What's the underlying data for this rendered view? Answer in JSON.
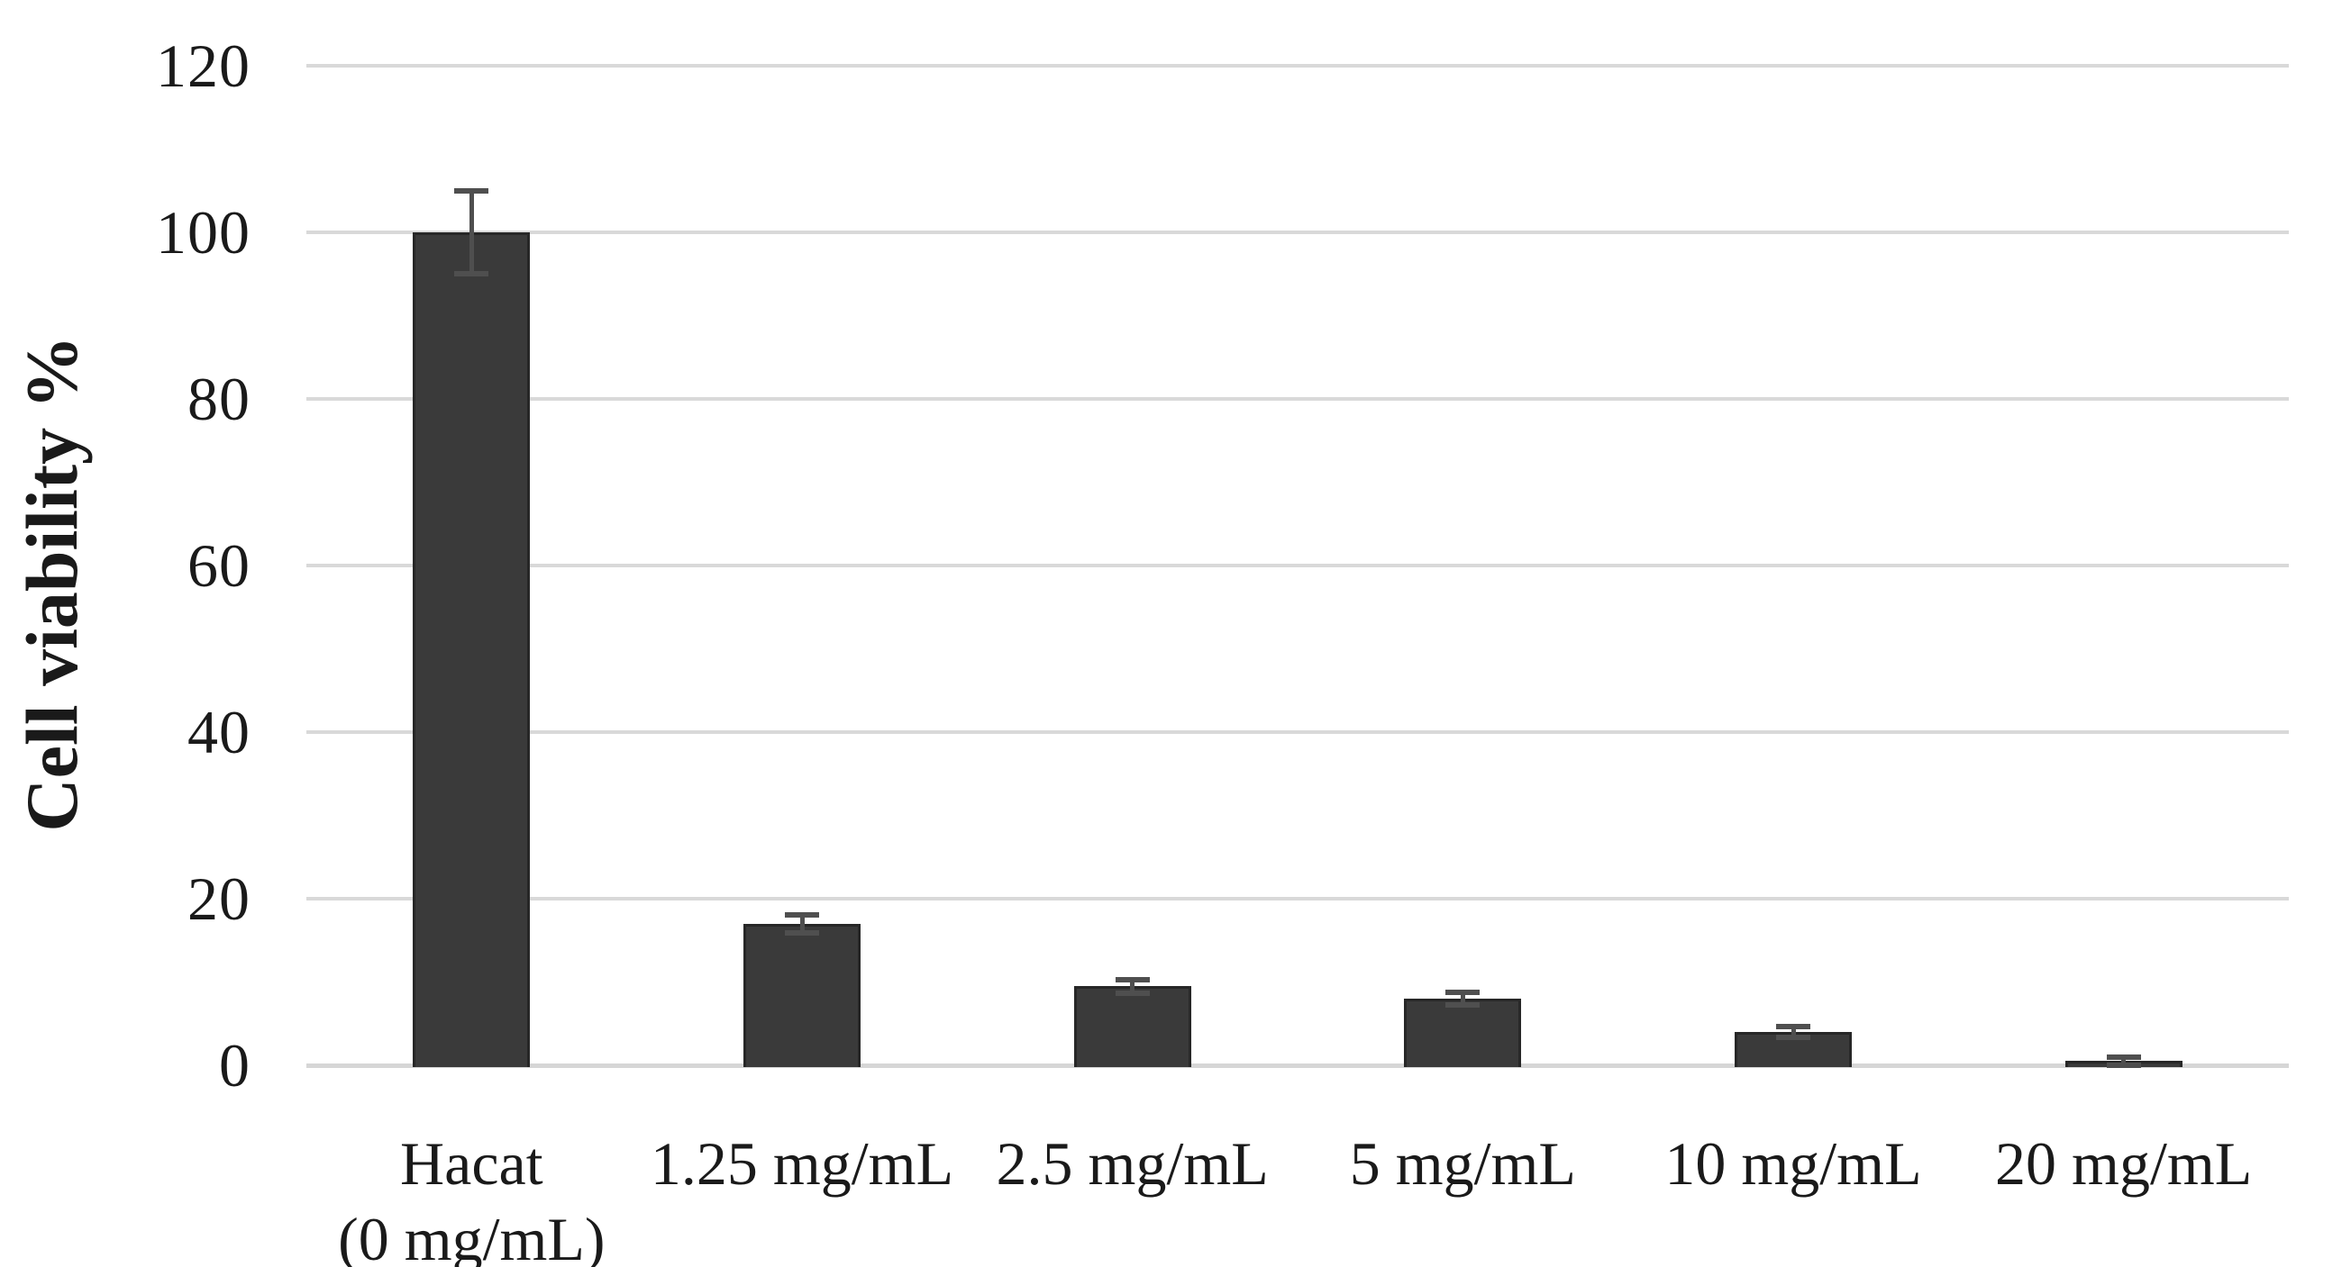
{
  "chart_data": {
    "type": "bar",
    "title": "",
    "xlabel": "",
    "ylabel": "Cell viability %",
    "categories": [
      "Hacat\n(0 mg/mL)",
      "1.25 mg/mL",
      "2.5 mg/mL",
      "5 mg/mL",
      "10 mg/mL",
      "20 mg/mL"
    ],
    "values": [
      100,
      17,
      9.5,
      8,
      4,
      0.5
    ],
    "errors": [
      5,
      1.1,
      0.8,
      0.8,
      0.7,
      0.5
    ],
    "yticks": [
      0,
      20,
      40,
      60,
      80,
      100,
      120
    ],
    "ylim": [
      0,
      120
    ],
    "grid": true,
    "legend": false,
    "bar_color": "#3a3a3a",
    "bar_border_color": "#272727",
    "error_bar_color": "#4f4f4f",
    "gridline_color": "#d9d9d9",
    "axis_line_color": "#d6d6d6",
    "text_color": "#1a1a1a",
    "background_color": "#ffffff"
  }
}
